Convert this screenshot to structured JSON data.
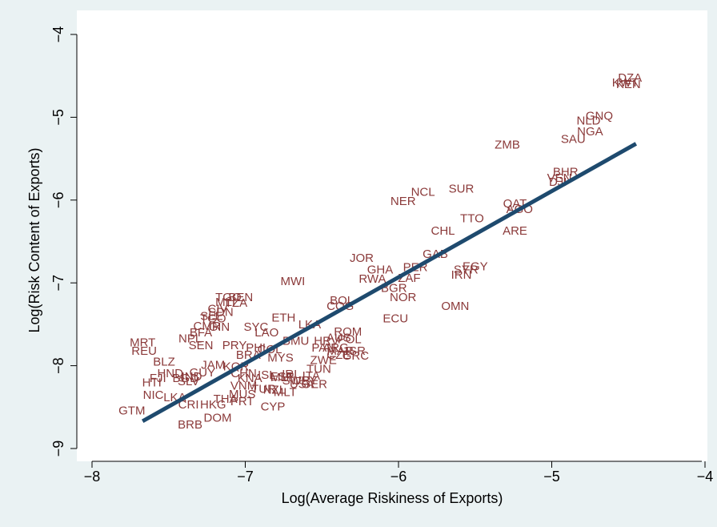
{
  "chart_data": {
    "type": "scatter",
    "xlabel": "Log(Average Riskiness of Exports)",
    "ylabel": "Log(Risk Content of Exports)",
    "xlim": [
      -8.1,
      -3.9
    ],
    "ylim": [
      -9.3,
      -3.8
    ],
    "xticks": [
      "-8",
      "-7",
      "-6",
      "-5",
      "-4"
    ],
    "yticks": [
      "-9",
      "-8",
      "-7",
      "-6",
      "-5",
      "-4"
    ],
    "grid": false,
    "legend": "none",
    "colors": {
      "background": "#eaf2f3",
      "plot_bg": "#ffffff",
      "points": "#8b3a3a",
      "fit_line": "#1e4a6e"
    },
    "fit_line": {
      "x": [
        -7.67,
        -4.45
      ],
      "y": [
        -8.67,
        -5.32
      ]
    },
    "points": [
      {
        "label": "DZA",
        "x": -4.49,
        "y": -4.52
      },
      {
        "label": "KWT",
        "x": -4.52,
        "y": -4.58
      },
      {
        "label": "KEN",
        "x": -4.5,
        "y": -4.6
      },
      {
        "label": "GNQ",
        "x": -4.69,
        "y": -4.98
      },
      {
        "label": "NLD",
        "x": -4.76,
        "y": -5.04
      },
      {
        "label": "NGA",
        "x": -4.75,
        "y": -5.17
      },
      {
        "label": "SAU",
        "x": -4.86,
        "y": -5.26
      },
      {
        "label": "ZMB",
        "x": -5.29,
        "y": -5.33
      },
      {
        "label": "BHR",
        "x": -4.91,
        "y": -5.66
      },
      {
        "label": "VEN",
        "x": -4.95,
        "y": -5.73
      },
      {
        "label": "DJI",
        "x": -4.96,
        "y": -5.78
      },
      {
        "label": "SUR",
        "x": -5.59,
        "y": -5.86
      },
      {
        "label": "NCL",
        "x": -5.84,
        "y": -5.9
      },
      {
        "label": "NER",
        "x": -5.97,
        "y": -6.01
      },
      {
        "label": "QAT",
        "x": -5.24,
        "y": -6.04
      },
      {
        "label": "AGO",
        "x": -5.21,
        "y": -6.11
      },
      {
        "label": "TTO",
        "x": -5.52,
        "y": -6.22
      },
      {
        "label": "CHL",
        "x": -5.71,
        "y": -6.37
      },
      {
        "label": "ARE",
        "x": -5.24,
        "y": -6.37
      },
      {
        "label": "GAB",
        "x": -5.76,
        "y": -6.65
      },
      {
        "label": "JOR",
        "x": -6.24,
        "y": -6.7
      },
      {
        "label": "EGY",
        "x": -5.5,
        "y": -6.8
      },
      {
        "label": "SYR",
        "x": -5.56,
        "y": -6.84
      },
      {
        "label": "PER",
        "x": -5.89,
        "y": -6.81
      },
      {
        "label": "GHA",
        "x": -6.12,
        "y": -6.84
      },
      {
        "label": "IRN",
        "x": -5.59,
        "y": -6.9
      },
      {
        "label": "ZAF",
        "x": -5.93,
        "y": -6.94
      },
      {
        "label": "RWA",
        "x": -6.17,
        "y": -6.95
      },
      {
        "label": "MWI",
        "x": -6.69,
        "y": -6.98
      },
      {
        "label": "BGR",
        "x": -6.03,
        "y": -7.06
      },
      {
        "label": "NOR",
        "x": -5.97,
        "y": -7.17
      },
      {
        "label": "BOL",
        "x": -6.37,
        "y": -7.21
      },
      {
        "label": "COG",
        "x": -6.38,
        "y": -7.28
      },
      {
        "label": "OMN",
        "x": -5.63,
        "y": -7.28
      },
      {
        "label": "TGO",
        "x": -7.11,
        "y": -7.17
      },
      {
        "label": "BEN",
        "x": -7.03,
        "y": -7.17
      },
      {
        "label": "MLI",
        "x": -7.13,
        "y": -7.23
      },
      {
        "label": "TZA",
        "x": -7.06,
        "y": -7.24
      },
      {
        "label": "CIV",
        "x": -7.18,
        "y": -7.31
      },
      {
        "label": "SDN",
        "x": -7.16,
        "y": -7.35
      },
      {
        "label": "ETH",
        "x": -6.75,
        "y": -7.42
      },
      {
        "label": "ECU",
        "x": -6.02,
        "y": -7.43
      },
      {
        "label": "SLE",
        "x": -7.22,
        "y": -7.4
      },
      {
        "label": "TGO",
        "x": -7.21,
        "y": -7.43
      },
      {
        "label": "CMR",
        "x": -7.25,
        "y": -7.52
      },
      {
        "label": "GIN",
        "x": -7.17,
        "y": -7.53
      },
      {
        "label": "SYC",
        "x": -6.93,
        "y": -7.53
      },
      {
        "label": "LKA",
        "x": -6.58,
        "y": -7.5
      },
      {
        "label": "ROM",
        "x": -6.33,
        "y": -7.59
      },
      {
        "label": "BFA",
        "x": -7.29,
        "y": -7.6
      },
      {
        "label": "LAO",
        "x": -6.86,
        "y": -7.6
      },
      {
        "label": "MRT",
        "x": -7.67,
        "y": -7.72
      },
      {
        "label": "NPL",
        "x": -7.36,
        "y": -7.67
      },
      {
        "label": "SEN",
        "x": -7.29,
        "y": -7.75
      },
      {
        "label": "PRY",
        "x": -7.07,
        "y": -7.75
      },
      {
        "label": "BMU",
        "x": -6.67,
        "y": -7.7
      },
      {
        "label": "HRV",
        "x": -6.47,
        "y": -7.7
      },
      {
        "label": "AUS",
        "x": -6.39,
        "y": -7.66
      },
      {
        "label": "POL",
        "x": -6.32,
        "y": -7.68
      },
      {
        "label": "REU",
        "x": -7.66,
        "y": -7.82
      },
      {
        "label": "PAN",
        "x": -6.49,
        "y": -7.78
      },
      {
        "label": "ARG",
        "x": -6.41,
        "y": -7.78
      },
      {
        "label": "PHL",
        "x": -6.92,
        "y": -7.78
      },
      {
        "label": "COL",
        "x": -6.84,
        "y": -7.8
      },
      {
        "label": "MAR",
        "x": -6.38,
        "y": -7.82
      },
      {
        "label": "ISR",
        "x": -6.28,
        "y": -7.82
      },
      {
        "label": "GRC",
        "x": -6.28,
        "y": -7.88
      },
      {
        "label": "CZE",
        "x": -6.39,
        "y": -7.87
      },
      {
        "label": "BRA",
        "x": -6.98,
        "y": -7.87
      },
      {
        "label": "MYS",
        "x": -6.77,
        "y": -7.9
      },
      {
        "label": "ZWE",
        "x": -6.49,
        "y": -7.93
      },
      {
        "label": "BLZ",
        "x": -7.53,
        "y": -7.95
      },
      {
        "label": "JAM",
        "x": -7.21,
        "y": -7.99
      },
      {
        "label": "KOR",
        "x": -7.06,
        "y": -8.01
      },
      {
        "label": "TUN",
        "x": -6.52,
        "y": -8.04
      },
      {
        "label": "HND",
        "x": -7.49,
        "y": -8.09
      },
      {
        "label": "GUY",
        "x": -7.28,
        "y": -8.08
      },
      {
        "label": "CHN",
        "x": -7.01,
        "y": -8.09
      },
      {
        "label": "IRL",
        "x": -6.7,
        "y": -8.1
      },
      {
        "label": "ISL",
        "x": -6.86,
        "y": -8.11
      },
      {
        "label": "ESP",
        "x": -6.76,
        "y": -8.13
      },
      {
        "label": "ITA",
        "x": -6.57,
        "y": -8.12
      },
      {
        "label": "MLT",
        "x": -6.76,
        "y": -8.14
      },
      {
        "label": "URY",
        "x": -6.61,
        "y": -8.18
      },
      {
        "label": "SWE",
        "x": -6.67,
        "y": -8.18
      },
      {
        "label": "FJI",
        "x": -7.57,
        "y": -8.15
      },
      {
        "label": "BGD",
        "x": -7.39,
        "y": -8.15
      },
      {
        "label": "SLV",
        "x": -7.37,
        "y": -8.19
      },
      {
        "label": "IND",
        "x": -7.35,
        "y": -8.13
      },
      {
        "label": "KNA",
        "x": -6.97,
        "y": -8.15
      },
      {
        "label": "HTI",
        "x": -7.61,
        "y": -8.2
      },
      {
        "label": "GER",
        "x": -6.55,
        "y": -8.22
      },
      {
        "label": "USA",
        "x": -6.63,
        "y": -8.22
      },
      {
        "label": "VNM",
        "x": -7.01,
        "y": -8.24
      },
      {
        "label": "TUR",
        "x": -6.88,
        "y": -8.28
      },
      {
        "label": "NZL",
        "x": -6.81,
        "y": -8.29
      },
      {
        "label": "MLT",
        "x": -6.74,
        "y": -8.32
      },
      {
        "label": "MUS",
        "x": -7.02,
        "y": -8.34
      },
      {
        "label": "NIC",
        "x": -7.6,
        "y": -8.35
      },
      {
        "label": "LKA",
        "x": -7.46,
        "y": -8.38
      },
      {
        "label": "THA",
        "x": -7.13,
        "y": -8.4
      },
      {
        "label": "HKG",
        "x": -7.21,
        "y": -8.47
      },
      {
        "label": "PRT",
        "x": -7.02,
        "y": -8.43
      },
      {
        "label": "CRI",
        "x": -7.37,
        "y": -8.47
      },
      {
        "label": "GTM",
        "x": -7.74,
        "y": -8.54
      },
      {
        "label": "CYP",
        "x": -6.82,
        "y": -8.49
      },
      {
        "label": "DOM",
        "x": -7.18,
        "y": -8.63
      },
      {
        "label": "BRB",
        "x": -7.36,
        "y": -8.71
      }
    ]
  }
}
